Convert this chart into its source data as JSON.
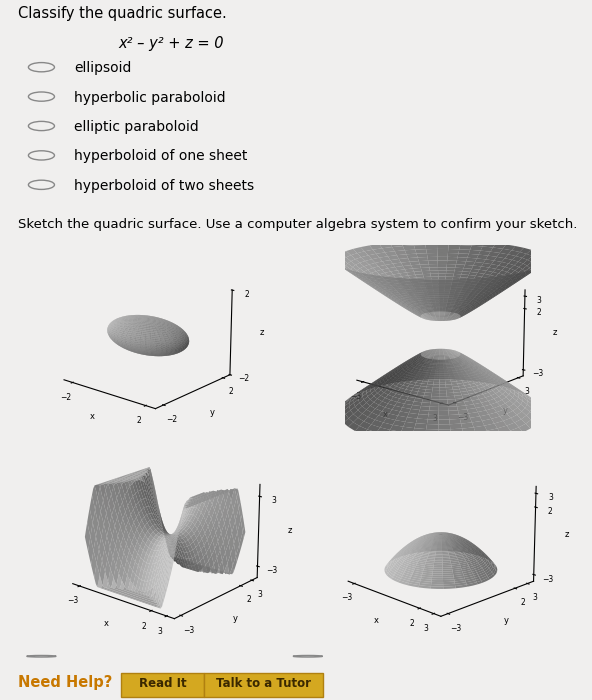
{
  "title": "Classify the quadric surface.",
  "equation": "x² – y² + z = 0",
  "options": [
    "ellipsoid",
    "hyperbolic paraboloid",
    "elliptic paraboloid",
    "hyperboloid of one sheet",
    "hyperboloid of two sheets"
  ],
  "sketch_prompt": "Sketch the quadric surface. Use a computer algebra system to confirm your sketch.",
  "need_help": "Need Help?",
  "btn1": "Read It",
  "btn2": "Talk to a Tutor",
  "bg_color": "#f0efee",
  "surface_color": "#b8b8b8",
  "surface_alpha": 0.85
}
